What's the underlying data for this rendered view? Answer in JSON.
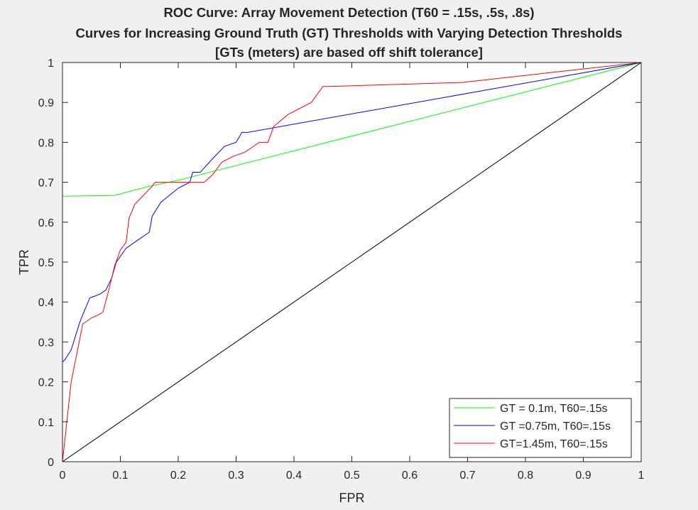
{
  "chart_data": {
    "type": "line",
    "title": [
      "ROC Curve: Array Movement Detection (T60 = .15s, .5s, .8s)",
      "Curves for Increasing Ground Truth (GT) Thresholds with Varying Detection Thresholds",
      "[GTs (meters) are based off shift tolerance]"
    ],
    "xlabel": "FPR",
    "ylabel": "TPR",
    "xlim": [
      0,
      1
    ],
    "ylim": [
      0,
      1
    ],
    "xticks": [
      "0",
      "0.1",
      "0.2",
      "0.3",
      "0.4",
      "0.5",
      "0.6",
      "0.7",
      "0.8",
      "0.9",
      "1"
    ],
    "yticks": [
      "0",
      "0.1",
      "0.2",
      "0.3",
      "0.4",
      "0.5",
      "0.6",
      "0.7",
      "0.8",
      "0.9",
      "1"
    ],
    "grid": false,
    "legend_position": "bottom-right",
    "series": [
      {
        "name": "GT = 0.1m, T60=.15s",
        "color": "#00ff00",
        "x": [
          0,
          0,
          0,
          0.09,
          0.15,
          0.2,
          1
        ],
        "y": [
          0,
          0.2,
          0.665,
          0.667,
          0.69,
          0.705,
          1
        ]
      },
      {
        "name": "GT =0.75m, T60=.15s",
        "color": "#0000ff",
        "x": [
          0,
          0,
          0.004,
          0.015,
          0.03,
          0.047,
          0.065,
          0.075,
          0.085,
          0.093,
          0.11,
          0.135,
          0.15,
          0.155,
          0.17,
          0.2,
          0.22,
          0.225,
          0.238,
          0.26,
          0.28,
          0.3,
          0.31,
          0.32,
          1
        ],
        "y": [
          0,
          0.25,
          0.255,
          0.28,
          0.35,
          0.41,
          0.42,
          0.43,
          0.46,
          0.5,
          0.535,
          0.56,
          0.575,
          0.615,
          0.65,
          0.685,
          0.7,
          0.725,
          0.725,
          0.76,
          0.79,
          0.8,
          0.825,
          0.825,
          1
        ]
      },
      {
        "name": "GT=1.45m, T60=.15s",
        "color": "#ff0000",
        "x": [
          0,
          0.015,
          0.035,
          0.05,
          0.065,
          0.07,
          0.08,
          0.09,
          0.1,
          0.11,
          0.115,
          0.125,
          0.155,
          0.16,
          0.225,
          0.245,
          0.26,
          0.275,
          0.295,
          0.315,
          0.33,
          0.34,
          0.355,
          0.365,
          0.39,
          0.43,
          0.45,
          0.46,
          0.69,
          1
        ],
        "y": [
          0,
          0.2,
          0.345,
          0.36,
          0.37,
          0.375,
          0.43,
          0.49,
          0.53,
          0.55,
          0.61,
          0.645,
          0.69,
          0.7,
          0.7,
          0.7,
          0.72,
          0.75,
          0.765,
          0.775,
          0.79,
          0.8,
          0.8,
          0.84,
          0.87,
          0.9,
          0.94,
          0.94,
          0.95,
          1
        ]
      },
      {
        "name": "",
        "color": "#000000",
        "x": [
          0,
          1
        ],
        "y": [
          0,
          1
        ]
      }
    ]
  }
}
